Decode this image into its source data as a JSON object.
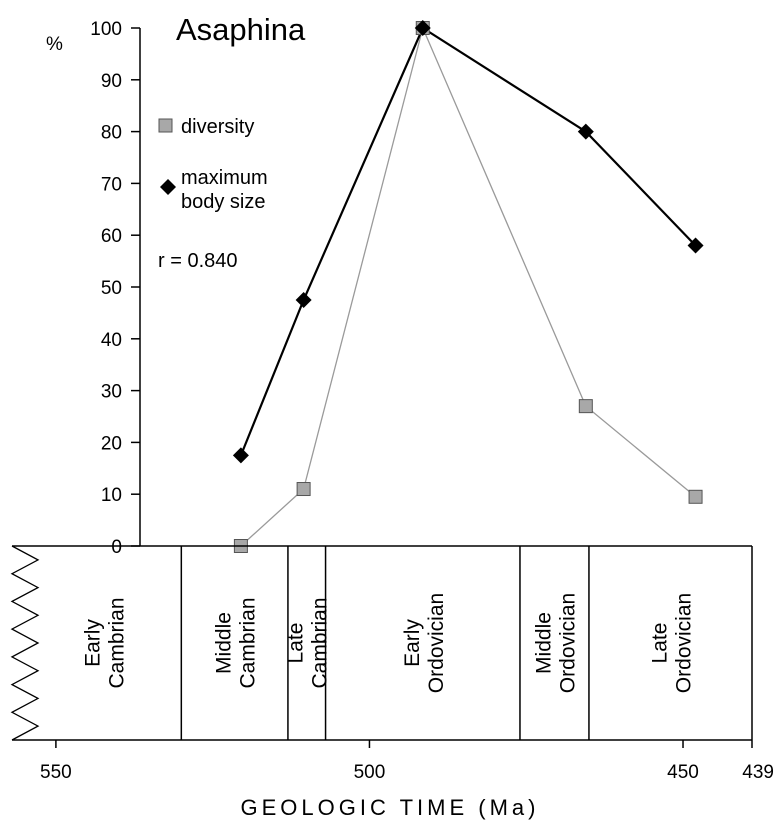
{
  "chart_data": {
    "type": "line",
    "title": "Asaphina",
    "ylabel": "%",
    "xlabel": "GEOLOGIC TIME (Ma)",
    "ylim": [
      0,
      100
    ],
    "xlim": [
      439,
      557
    ],
    "x_reversed": true,
    "yticks": [
      0,
      10,
      20,
      30,
      40,
      50,
      60,
      70,
      80,
      90,
      100
    ],
    "xticks": [
      {
        "value": 550,
        "label": "550"
      },
      {
        "value": 500,
        "label": "500"
      },
      {
        "value": 450,
        "label": "450"
      },
      {
        "value": 439,
        "label": "439"
      }
    ],
    "series": [
      {
        "name": "diversity",
        "marker": "square",
        "color": "#a8a8a8",
        "x": [
          520.5,
          510.5,
          491.5,
          465.5,
          448.0
        ],
        "values": [
          0,
          11,
          100,
          27,
          9.5
        ]
      },
      {
        "name": "maximum body size",
        "marker": "diamond",
        "color": "#000000",
        "x": [
          520.5,
          510.5,
          491.5,
          465.5,
          448.0
        ],
        "values": [
          17.5,
          47.5,
          100,
          80,
          58
        ]
      }
    ],
    "annotations": [
      {
        "text": "r = 0.840"
      }
    ],
    "periods": [
      {
        "lines": [
          "Early",
          "Cambrian"
        ],
        "start": 557,
        "end": 530
      },
      {
        "lines": [
          "Middle",
          "Cambrian"
        ],
        "start": 530,
        "end": 513
      },
      {
        "lines": [
          "Late",
          "Cambrian"
        ],
        "start": 513,
        "end": 507
      },
      {
        "lines": [
          "Early",
          "Ordovician"
        ],
        "start": 507,
        "end": 476
      },
      {
        "lines": [
          "Middle",
          "Ordovician"
        ],
        "start": 476,
        "end": 465
      },
      {
        "lines": [
          "Late",
          "Ordovician"
        ],
        "start": 465,
        "end": 439
      }
    ],
    "grid": false,
    "legend_position": "top-left"
  }
}
